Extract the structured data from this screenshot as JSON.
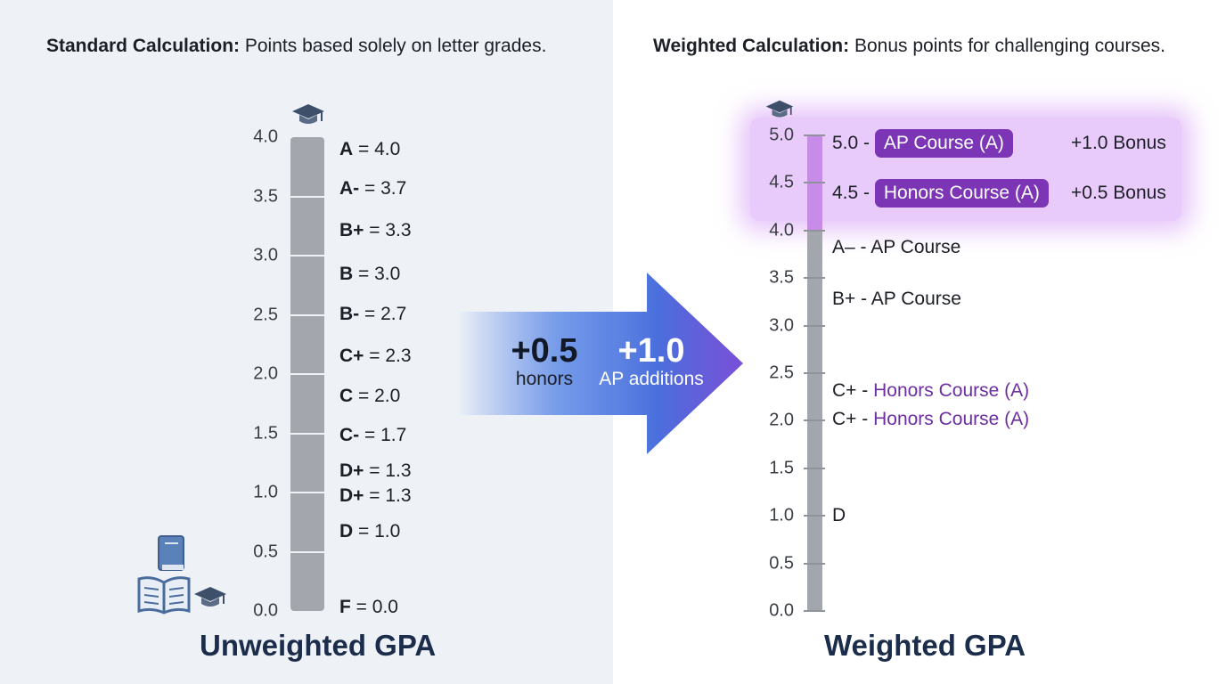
{
  "left": {
    "caption_bold": "Standard Calculation:",
    "caption_rest": " Points based solely on letter grades.",
    "title": "Unweighted GPA",
    "ticks": [
      "4.0",
      "3.5",
      "3.0",
      "2.5",
      "2.0",
      "1.5",
      "1.0",
      "0.5",
      "0.0"
    ],
    "grades": [
      {
        "letter": "A",
        "value": " = 4.0"
      },
      {
        "letter": "A-",
        "value": " = 3.7"
      },
      {
        "letter": "B+",
        "value": " = 3.3"
      },
      {
        "letter": "B",
        "value": " = 3.0"
      },
      {
        "letter": "B-",
        "value": " = 2.7"
      },
      {
        "letter": "C+",
        "value": " = 2.3"
      },
      {
        "letter": "C",
        "value": " = 2.0"
      },
      {
        "letter": "C-",
        "value": " = 1.7"
      },
      {
        "letter": "D+",
        "value": " = 1.3"
      },
      {
        "letter": "D+",
        "value": " = 1.3"
      },
      {
        "letter": "D",
        "value": " = 1.0"
      },
      {
        "letter": "F",
        "value": " = 0.0"
      }
    ]
  },
  "arrow": {
    "honors_value": "+0.5",
    "honors_label": "honors",
    "ap_value": "+1.0",
    "ap_label": "AP additions"
  },
  "right": {
    "caption_bold": "Weighted Calculation:",
    "caption_rest": " Bonus points for challenging courses.",
    "title": "Weighted GPA",
    "ticks": [
      "5.0",
      "4.5",
      "4.0",
      "3.5",
      "3.0",
      "2.5",
      "2.0",
      "1.5",
      "1.0",
      "0.5",
      "0.0"
    ],
    "ap_prefix": "5.0 - ",
    "ap_pill": "AP Course (A)",
    "ap_bonus": "+1.0 Bonus",
    "hon_prefix": "4.5 - ",
    "hon_pill": "Honors Course (A)",
    "hon_bonus": "+0.5 Bonus",
    "row_a": "A– - AP Course",
    "row_b": "B+ - AP Course",
    "row_c1_prefix": "C+ - ",
    "row_c1_text": "Honors Course (A)",
    "row_c2_prefix": "C+ - ",
    "row_c2_text": "Honors Course (A)",
    "row_d": "D"
  },
  "colors": {
    "accent_purple": "#7b35b5",
    "bar_gray": "#a3a7ad",
    "title_navy": "#1b2d4b",
    "arrow_blue": "#3f6fe0"
  },
  "icons": [
    "graduation-cap-icon",
    "book-icon",
    "open-book-icon"
  ]
}
